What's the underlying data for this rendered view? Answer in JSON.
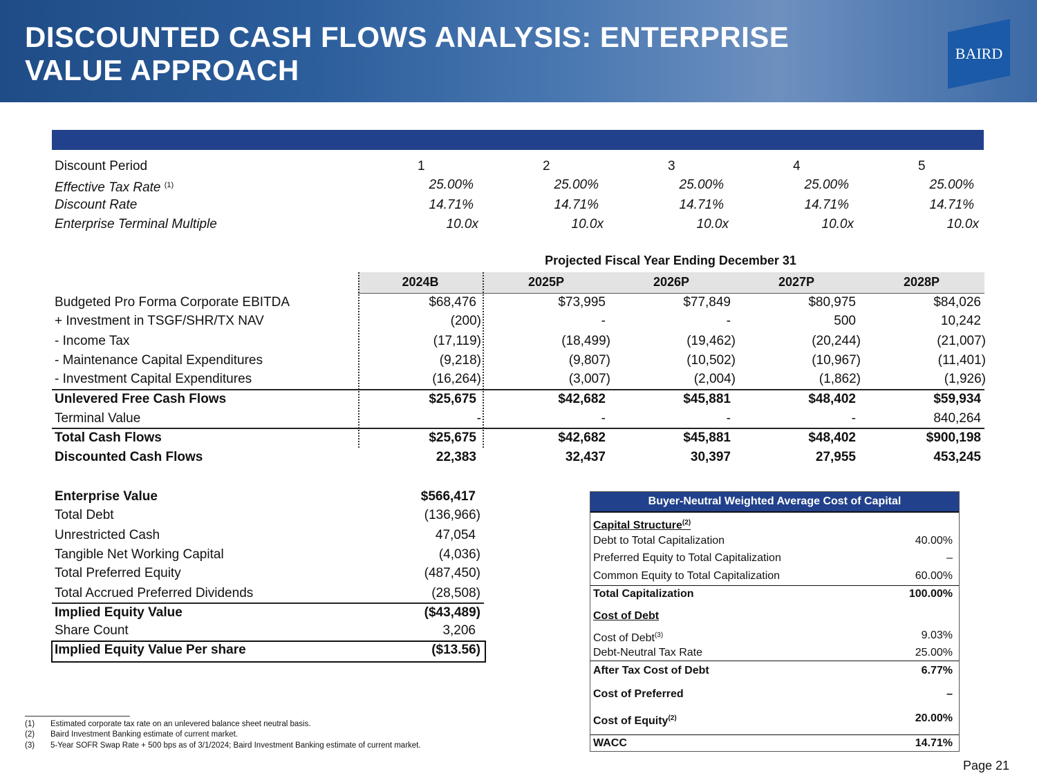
{
  "header": {
    "title": "DISCOUNTED CASH FLOWS ANALYSIS: ENTERPRISE VALUE APPROACH",
    "logo": "BAIRD"
  },
  "assumptions": {
    "rows": [
      {
        "label": "Discount Period",
        "values": [
          "1",
          "2",
          "3",
          "4",
          "5"
        ]
      },
      {
        "label": "Effective Tax Rate",
        "sup": "(1)",
        "values": [
          "25.00%",
          "25.00%",
          "25.00%",
          "25.00%",
          "25.00%"
        ]
      },
      {
        "label": "Discount Rate",
        "values": [
          "14.71%",
          "14.71%",
          "14.71%",
          "14.71%",
          "14.71%"
        ]
      },
      {
        "label": "Enterprise Terminal Multiple",
        "values": [
          "10.0x",
          "10.0x",
          "10.0x",
          "10.0x",
          "10.0x"
        ]
      }
    ]
  },
  "projections": {
    "title": "Projected Fiscal Year Ending December 31",
    "years": [
      "2024B",
      "2025P",
      "2026P",
      "2027P",
      "2028P"
    ],
    "rows": [
      {
        "label": "Budgeted Pro Forma Corporate EBITDA",
        "values": [
          "$68,476",
          "$73,995",
          "$77,849",
          "$80,975",
          "$84,026"
        ]
      },
      {
        "label": "+ Investment in TSGF/SHR/TX NAV",
        "values": [
          "(200)",
          "-",
          "-",
          "500",
          "10,242"
        ]
      },
      {
        "label": "- Income Tax",
        "values": [
          "(17,119)",
          "(18,499)",
          "(19,462)",
          "(20,244)",
          "(21,007)"
        ]
      },
      {
        "label": "- Maintenance Capital Expenditures",
        "values": [
          "(9,218)",
          "(9,807)",
          "(10,502)",
          "(10,967)",
          "(11,401)"
        ]
      },
      {
        "label": "- Investment Capital Expenditures",
        "values": [
          "(16,264)",
          "(3,007)",
          "(2,004)",
          "(1,862)",
          "(1,926)"
        ]
      },
      {
        "label": "Unlevered Free Cash Flows",
        "values": [
          "$25,675",
          "$42,682",
          "$45,881",
          "$48,402",
          "$59,934"
        ]
      },
      {
        "label": "Terminal Value",
        "values": [
          "-",
          "-",
          "-",
          "-",
          "840,264"
        ]
      },
      {
        "label": "Total Cash Flows",
        "values": [
          "$25,675",
          "$42,682",
          "$45,881",
          "$48,402",
          "$900,198"
        ]
      },
      {
        "label": "Discounted Cash Flows",
        "values": [
          "22,383",
          "32,437",
          "30,397",
          "27,955",
          "453,245"
        ]
      }
    ]
  },
  "bridge": {
    "rows": [
      {
        "label": "Enterprise Value",
        "value": "$566,417"
      },
      {
        "label": "Total Debt",
        "value": "(136,966)"
      },
      {
        "label": "Unrestricted Cash",
        "value": "47,054"
      },
      {
        "label": "Tangible Net Working Capital",
        "value": "(4,036)"
      },
      {
        "label": "Total Preferred Equity",
        "value": "(487,450)"
      },
      {
        "label": "Total Accrued Preferred Dividends",
        "value": "(28,508)"
      },
      {
        "label": "Implied Equity Value",
        "value": "($43,489)"
      },
      {
        "label": "Share Count",
        "value": "3,206"
      },
      {
        "label": "Implied Equity Value Per share",
        "value": "($13.56)"
      }
    ]
  },
  "wacc": {
    "title": "Buyer-Neutral Weighted Average Cost of Capital",
    "rows": [
      {
        "label": "Capital Structure",
        "sup": "(2)",
        "value": ""
      },
      {
        "label": "Debt to Total Capitalization",
        "value": "40.00%"
      },
      {
        "label": "Preferred Equity to Total Capitalization",
        "value": "–"
      },
      {
        "label": "Common Equity to Total Capitalization",
        "value": "60.00%"
      },
      {
        "label": "Total Capitalization",
        "value": "100.00%"
      },
      {
        "label": "Cost of Debt",
        "value": ""
      },
      {
        "label": "Cost of Debt",
        "sup": "(3)",
        "value": "9.03%"
      },
      {
        "label": "Debt-Neutral Tax Rate",
        "value": "25.00%"
      },
      {
        "label": "After Tax Cost of Debt",
        "value": "6.77%"
      },
      {
        "label": "Cost of Preferred",
        "value": "–"
      },
      {
        "label": "Cost of Equity",
        "sup": "(2)",
        "value": "20.00%"
      },
      {
        "label": "WACC",
        "value": "14.71%"
      }
    ]
  },
  "footnotes": [
    {
      "num": "(1)",
      "text": "Estimated corporate tax rate on an unlevered balance sheet neutral basis."
    },
    {
      "num": "(2)",
      "text": "Baird Investment Banking estimate of current market."
    },
    {
      "num": "(3)",
      "text": "5-Year SOFR Swap Rate + 500 bps as of 3/1/2024; Baird Investment Banking estimate of current market."
    }
  ],
  "page": "Page 21"
}
